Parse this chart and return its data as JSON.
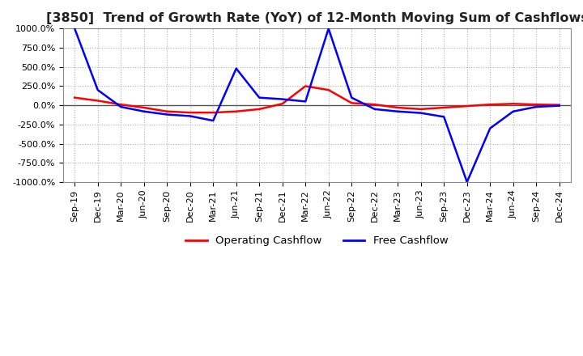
{
  "title": "[3850]  Trend of Growth Rate (YoY) of 12-Month Moving Sum of Cashflows",
  "ylim": [
    -1000,
    1000
  ],
  "yticks": [
    -1000,
    -750,
    -500,
    -250,
    0,
    250,
    500,
    750,
    1000
  ],
  "x_labels": [
    "Sep-19",
    "Dec-19",
    "Mar-20",
    "Jun-20",
    "Sep-20",
    "Dec-20",
    "Mar-21",
    "Jun-21",
    "Sep-21",
    "Dec-21",
    "Mar-22",
    "Jun-22",
    "Sep-22",
    "Dec-22",
    "Mar-23",
    "Jun-23",
    "Sep-23",
    "Dec-23",
    "Mar-24",
    "Jun-24",
    "Sep-24",
    "Dec-24"
  ],
  "operating_cashflow": [
    100,
    60,
    10,
    -30,
    -80,
    -95,
    -95,
    -80,
    -50,
    20,
    250,
    200,
    30,
    10,
    -30,
    -50,
    -30,
    -10,
    10,
    20,
    10,
    5
  ],
  "free_cashflow": [
    1000,
    200,
    -20,
    -80,
    -120,
    -140,
    -200,
    480,
    100,
    80,
    50,
    1000,
    100,
    -50,
    -80,
    -100,
    -150,
    -1000,
    -300,
    -80,
    -20,
    -5
  ],
  "op_color": "#ff0000",
  "fc_color": "#0000ff",
  "bg_color": "#ffffff",
  "grid_color": "#b0b0b0",
  "legend_labels": [
    "Operating Cashflow",
    "Free Cashflow"
  ],
  "title_fontsize": 11.5,
  "tick_fontsize": 8,
  "legend_fontsize": 9.5
}
